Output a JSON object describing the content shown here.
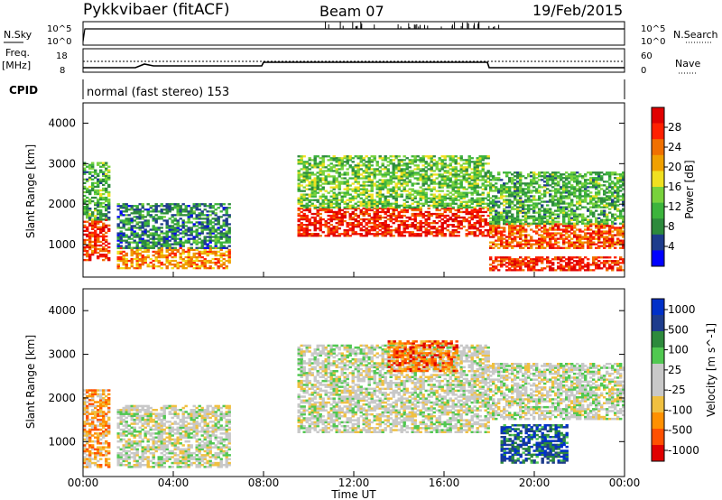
{
  "header": {
    "radar": "Pykkvibaer (fitACF)",
    "beam": "Beam 07",
    "date": "19/Feb/2015"
  },
  "strip_labels": {
    "nsky": "N.Sky",
    "nsearch": "N.Search",
    "freq_line1": "Freq.",
    "freq_line2": "[MHz]",
    "nave": "Nave",
    "cpid": "CPID",
    "cpid_value": "normal (fast stereo) 153",
    "noise_ticks_left": [
      "10^5",
      "10^0"
    ],
    "noise_ticks_right": [
      "10^5",
      "10^0"
    ],
    "freq_ticks": [
      "18",
      "8"
    ],
    "nave_ticks": [
      "60",
      "0"
    ]
  },
  "axes": {
    "ylabel": "Slant Range [km]",
    "y_ticks": [
      "1000",
      "2000",
      "3000",
      "4000"
    ],
    "x_ticks": [
      "00:00",
      "04:00",
      "08:00",
      "12:00",
      "16:00",
      "20:00",
      "00:00"
    ],
    "xlabel": "Time UT"
  },
  "colors": {
    "power": [
      "#0000ff",
      "#1e3c8c",
      "#2d8a3c",
      "#3cb43c",
      "#78d23c",
      "#f0e020",
      "#f0a000",
      "#f07000",
      "#ff2000",
      "#e00000"
    ],
    "velocity": [
      "#e00000",
      "#ff5000",
      "#ff9000",
      "#f0c040",
      "#c8c8c8",
      "#c8c8c8",
      "#50c850",
      "#2d8a3c",
      "#1e3c8c",
      "#0030c8"
    ]
  },
  "chart_data": [
    {
      "type": "heatmap",
      "title": "Power",
      "colorbar_label": "Power [dB]",
      "colorbar_ticks": [
        "4",
        "8",
        "12",
        "16",
        "20",
        "24",
        "28"
      ],
      "y_range_km": [
        200,
        4500
      ],
      "x_range_hours": [
        0,
        24
      ],
      "regions": [
        {
          "t": [
            0.0,
            1.2
          ],
          "r": [
            600,
            1600
          ],
          "level": 0.85
        },
        {
          "t": [
            0.0,
            1.2
          ],
          "r": [
            1600,
            3000
          ],
          "level": 0.35
        },
        {
          "t": [
            1.5,
            6.5
          ],
          "r": [
            400,
            900
          ],
          "level": 0.7
        },
        {
          "t": [
            1.5,
            6.5
          ],
          "r": [
            900,
            2000
          ],
          "level": 0.25
        },
        {
          "t": [
            9.5,
            18.0
          ],
          "r": [
            1200,
            1900
          ],
          "level": 0.9
        },
        {
          "t": [
            9.5,
            18.0
          ],
          "r": [
            1900,
            3200
          ],
          "level": 0.4
        },
        {
          "t": [
            18.0,
            24.0
          ],
          "r": [
            350,
            700
          ],
          "level": 0.9
        },
        {
          "t": [
            18.0,
            24.0
          ],
          "r": [
            900,
            1500
          ],
          "level": 0.8
        },
        {
          "t": [
            18.0,
            24.0
          ],
          "r": [
            1500,
            2800
          ],
          "level": 0.35
        }
      ]
    },
    {
      "type": "heatmap",
      "title": "Velocity",
      "colorbar_label": "Velocity [m s^-1]",
      "colorbar_ticks": [
        "1000",
        "500",
        "100",
        "25",
        "-25",
        "-100",
        "-500",
        "-1000"
      ],
      "y_range_km": [
        200,
        4500
      ],
      "x_range_hours": [
        0,
        24
      ],
      "regions": [
        {
          "t": [
            0.0,
            1.2
          ],
          "r": [
            400,
            2200
          ],
          "level": 0.3
        },
        {
          "t": [
            1.5,
            6.5
          ],
          "r": [
            400,
            1800
          ],
          "level": 0.5
        },
        {
          "t": [
            9.5,
            18.0
          ],
          "r": [
            1200,
            3200
          ],
          "level": 0.5
        },
        {
          "t": [
            13.5,
            16.5
          ],
          "r": [
            2600,
            3300
          ],
          "level": 0.2
        },
        {
          "t": [
            18.5,
            21.5
          ],
          "r": [
            500,
            1400
          ],
          "level": 0.85
        },
        {
          "t": [
            18.0,
            24.0
          ],
          "r": [
            1500,
            2800
          ],
          "level": 0.5
        }
      ]
    }
  ]
}
